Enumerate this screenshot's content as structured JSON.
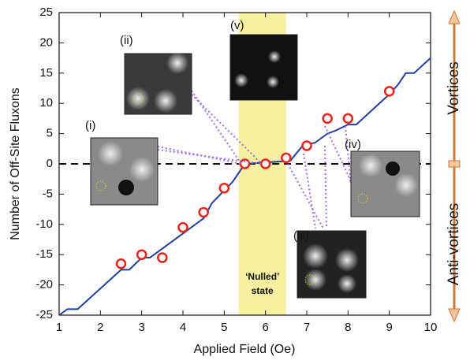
{
  "chart_data": {
    "type": "line",
    "xlabel": "Applied Field (Oe)",
    "ylabel": "Number of Off-Site Fluxons",
    "xlim": [
      1,
      10
    ],
    "xticks": [
      1,
      2,
      3,
      4,
      5,
      6,
      7,
      8,
      9,
      10
    ],
    "ylim": [
      -25,
      25
    ],
    "yticks": [
      -25,
      -20,
      -15,
      -10,
      -5,
      0,
      5,
      10,
      15,
      20,
      25
    ],
    "reference_line": 0,
    "shaded_x": [
      5.35,
      6.5
    ],
    "shaded_label": [
      "‘Nulled’",
      "state"
    ],
    "series": [
      {
        "color": "#1f3f9a",
        "x": [
          1,
          1.2,
          1.45,
          2.5,
          2.7,
          3.0,
          3.2,
          4.2,
          4.5,
          4.7,
          5.2,
          5.5,
          6.6,
          6.9,
          7.2,
          7.5,
          7.7,
          8,
          8.2,
          9,
          9.2,
          9.4,
          9.6,
          10
        ],
        "values": [
          -25,
          -24,
          -24,
          -17.5,
          -17.5,
          -15.5,
          -15.5,
          -10.5,
          -9,
          -6.5,
          -3,
          0,
          0.5,
          3,
          3.5,
          5,
          5.5,
          6.5,
          6.5,
          11.5,
          13,
          15,
          15,
          17.5
        ]
      },
      {
        "color": "#e8231c",
        "marker": "circle",
        "x": [
          2.5,
          3,
          3.5,
          4,
          4.5,
          5,
          5.5,
          6,
          6.5,
          7,
          7.5,
          8,
          9
        ],
        "values": [
          -16.5,
          -15,
          -15.5,
          -10.5,
          -8,
          -4,
          0,
          0,
          1,
          3,
          7.5,
          7.5,
          12
        ]
      }
    ],
    "insets": [
      "(i)",
      "(ii)",
      "(iii)",
      "(iv)",
      "(v)"
    ],
    "side_labels": [
      "Vortices",
      "Anti-vortices"
    ]
  }
}
